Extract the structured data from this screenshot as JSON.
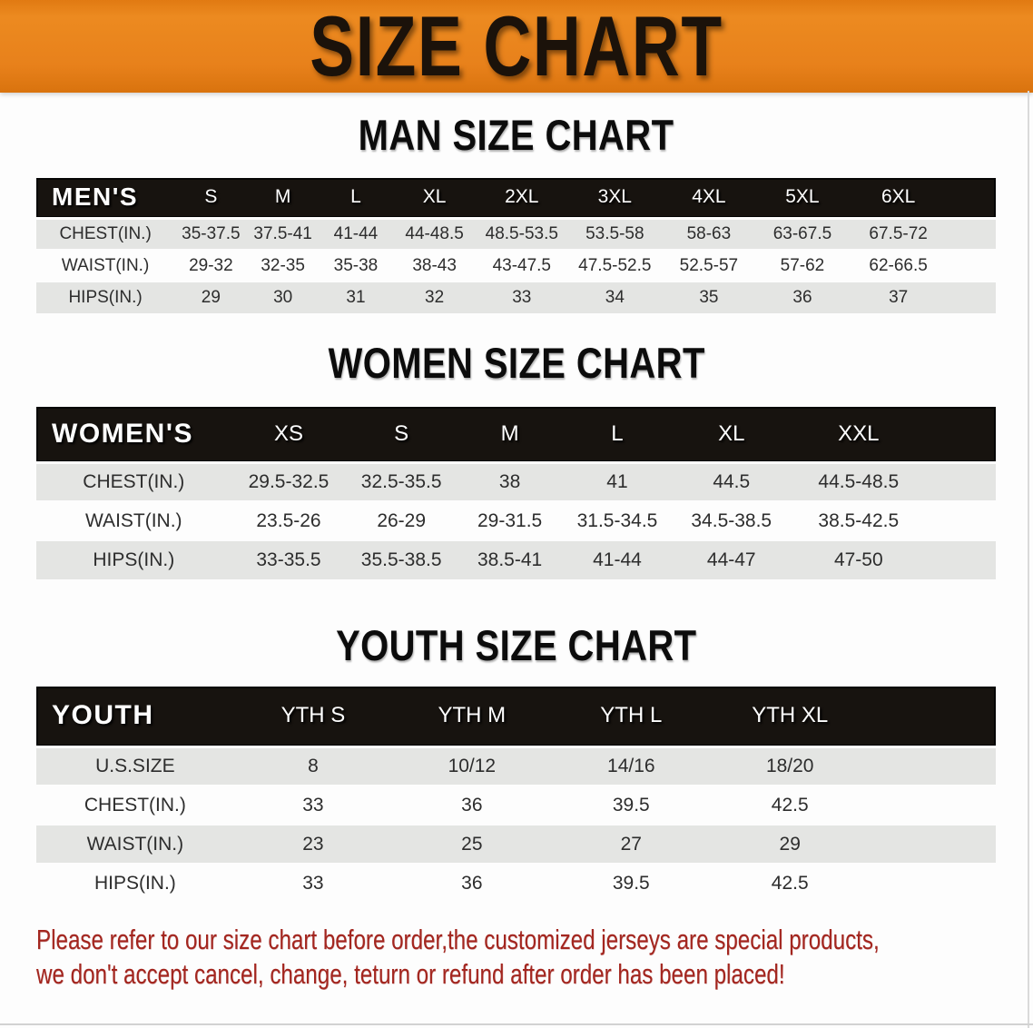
{
  "banner": {
    "title": "SIZE CHART"
  },
  "sections": [
    {
      "title": "MAN SIZE CHART",
      "header_label": "MEN'S",
      "columns": [
        "S",
        "M",
        "L",
        "XL",
        "2XL",
        "3XL",
        "4XL",
        "5XL",
        "6XL"
      ],
      "rows": [
        {
          "label": "CHEST(IN.)",
          "values": [
            "35-37.5",
            "37.5-41",
            "41-44",
            "44-48.5",
            "48.5-53.5",
            "53.5-58",
            "58-63",
            "63-67.5",
            "67.5-72"
          ]
        },
        {
          "label": "WAIST(IN.)",
          "values": [
            "29-32",
            "32-35",
            "35-38",
            "38-43",
            "43-47.5",
            "47.5-52.5",
            "52.5-57",
            "57-62",
            "62-66.5"
          ]
        },
        {
          "label": "HIPS(IN.)",
          "values": [
            "29",
            "30",
            "31",
            "32",
            "33",
            "34",
            "35",
            "36",
            "37"
          ]
        }
      ]
    },
    {
      "title": "WOMEN SIZE CHART",
      "header_label": "WOMEN'S",
      "columns": [
        "XS",
        "S",
        "M",
        "L",
        "XL",
        "XXL"
      ],
      "rows": [
        {
          "label": "CHEST(IN.)",
          "values": [
            "29.5-32.5",
            "32.5-35.5",
            "38",
            "41",
            "44.5",
            "44.5-48.5"
          ]
        },
        {
          "label": "WAIST(IN.)",
          "values": [
            "23.5-26",
            "26-29",
            "29-31.5",
            "31.5-34.5",
            "34.5-38.5",
            "38.5-42.5"
          ]
        },
        {
          "label": "HIPS(IN.)",
          "values": [
            "33-35.5",
            "35.5-38.5",
            "38.5-41",
            "41-44",
            "44-47",
            "47-50"
          ]
        }
      ]
    },
    {
      "title": "YOUTH SIZE CHART",
      "header_label": "YOUTH",
      "columns": [
        "YTH S",
        "YTH M",
        "YTH L",
        "YTH XL"
      ],
      "rows": [
        {
          "label": "U.S.SIZE",
          "values": [
            "8",
            "10/12",
            "14/16",
            "18/20"
          ]
        },
        {
          "label": "CHEST(IN.)",
          "values": [
            "33",
            "36",
            "39.5",
            "42.5"
          ]
        },
        {
          "label": "WAIST(IN.)",
          "values": [
            "23",
            "25",
            "27",
            "29"
          ]
        },
        {
          "label": "HIPS(IN.)",
          "values": [
            "33",
            "36",
            "39.5",
            "42.5"
          ]
        }
      ]
    }
  ],
  "disclaimer": {
    "line1": "Please refer to our size chart before order,the customized jerseys are special products,",
    "line2": "we don't accept cancel, change, teturn or refund after order has been placed!"
  },
  "colors": {
    "banner_bg": "#e8811b",
    "table_header_bg": "#17130f",
    "row_gray": "#e4e5e3",
    "disclaimer_red": "#a3261f"
  }
}
